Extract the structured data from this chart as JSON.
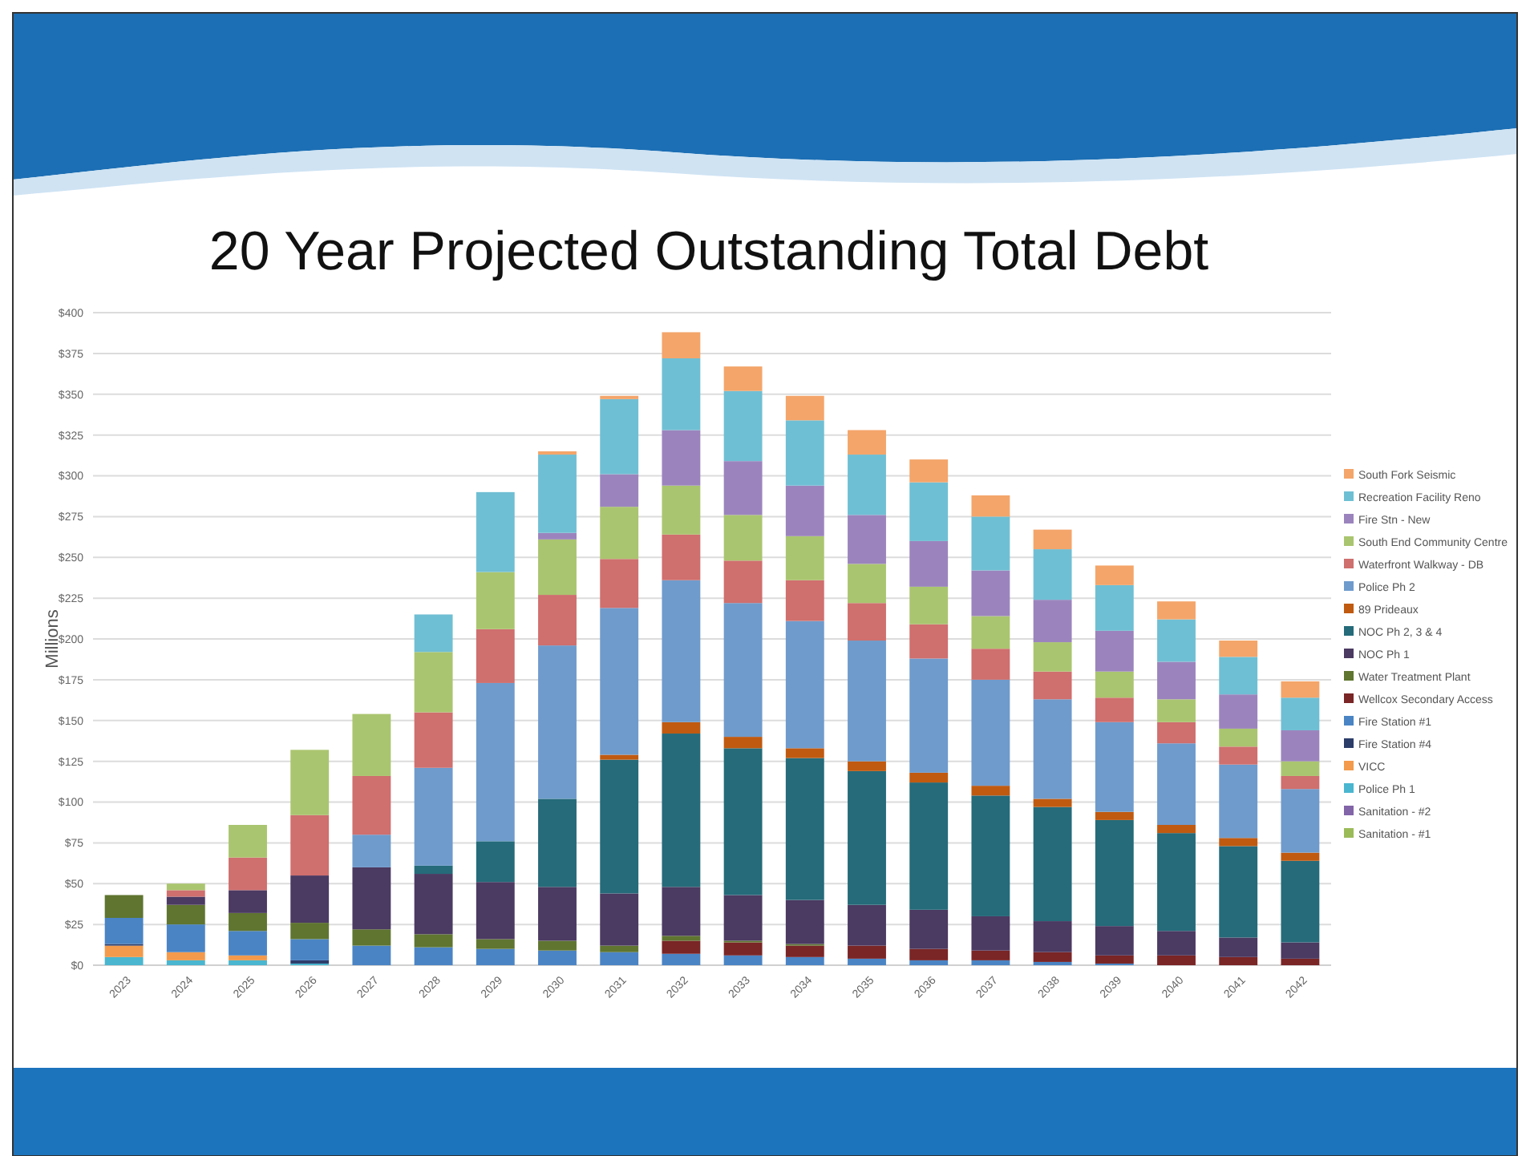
{
  "chart_data": {
    "type": "bar",
    "title": "20 Year Projected Outstanding Total Debt",
    "ylabel": "Millions",
    "stacked": true,
    "legend": "right",
    "grid": "y",
    "categories": [
      "2023",
      "2024",
      "2025",
      "2026",
      "2027",
      "2028",
      "2029",
      "2030",
      "2031",
      "2032",
      "2033",
      "2034",
      "2035",
      "2036",
      "2037",
      "2038",
      "2039",
      "2040",
      "2041",
      "2042"
    ],
    "ylim": [
      0,
      400
    ],
    "yticks": [
      {
        "value": 0,
        "label": "$0"
      },
      {
        "value": 25,
        "label": "$25"
      },
      {
        "value": 50,
        "label": "$50"
      },
      {
        "value": 75,
        "label": "$75"
      },
      {
        "value": 100,
        "label": "$100"
      },
      {
        "value": 125,
        "label": "$125"
      },
      {
        "value": 150,
        "label": "$150"
      },
      {
        "value": 175,
        "label": "$175"
      },
      {
        "value": 200,
        "label": "$200"
      },
      {
        "value": 225,
        "label": "$225"
      },
      {
        "value": 250,
        "label": "$250"
      },
      {
        "value": 275,
        "label": "$275"
      },
      {
        "value": 300,
        "label": "$300"
      },
      {
        "value": 325,
        "label": "$325"
      },
      {
        "value": 350,
        "label": "$350"
      },
      {
        "value": 375,
        "label": "$375"
      },
      {
        "value": 400,
        "label": "$400"
      }
    ],
    "series": [
      {
        "name": "Sanitation - #1",
        "color": "#9bbb59",
        "values": [
          0,
          0,
          0,
          0,
          0,
          0,
          0,
          0,
          0,
          0,
          0,
          0,
          0,
          0,
          0,
          0,
          0,
          0,
          0,
          0
        ]
      },
      {
        "name": "Sanitation - #2",
        "color": "#8264a8",
        "values": [
          0,
          0,
          0,
          0,
          0,
          0,
          0,
          0,
          0,
          0,
          0,
          0,
          0,
          0,
          0,
          0,
          0,
          0,
          0,
          0
        ]
      },
      {
        "name": "Police Ph 1",
        "color": "#4ab6cf",
        "values": [
          5,
          3,
          3,
          1,
          0,
          0,
          0,
          0,
          0,
          0,
          0,
          0,
          0,
          0,
          0,
          0,
          0,
          0,
          0,
          0
        ]
      },
      {
        "name": "VICC",
        "color": "#f39a4c",
        "values": [
          7,
          5,
          3,
          0,
          0,
          0,
          0,
          0,
          0,
          0,
          0,
          0,
          0,
          0,
          0,
          0,
          0,
          0,
          0,
          0
        ]
      },
      {
        "name": "Fire Station #4",
        "color": "#2c3d6a",
        "values": [
          1,
          0,
          0,
          2,
          0,
          0,
          0,
          0,
          0,
          0,
          0,
          0,
          0,
          0,
          0,
          0,
          0,
          0,
          0,
          0
        ]
      },
      {
        "name": "Fire Station #1",
        "color": "#4a84c4",
        "values": [
          16,
          17,
          15,
          13,
          12,
          11,
          10,
          9,
          8,
          7,
          6,
          5,
          4,
          3,
          3,
          2,
          1,
          0,
          0,
          0
        ]
      },
      {
        "name": "Wellcox Secondary Access",
        "color": "#7a2526",
        "values": [
          0,
          0,
          0,
          0,
          0,
          0,
          0,
          0,
          0,
          8,
          8,
          7,
          8,
          7,
          6,
          6,
          5,
          6,
          5,
          4
        ]
      },
      {
        "name": "Water Treatment Plant",
        "color": "#5f7530",
        "values": [
          14,
          12,
          11,
          10,
          10,
          8,
          6,
          6,
          4,
          3,
          1,
          1,
          0,
          0,
          0,
          0,
          0,
          0,
          0,
          0
        ]
      },
      {
        "name": "NOC Ph 1",
        "color": "#4b3a62",
        "values": [
          0,
          5,
          14,
          29,
          38,
          37,
          35,
          33,
          32,
          30,
          28,
          27,
          25,
          24,
          21,
          19,
          18,
          15,
          12,
          10
        ]
      },
      {
        "name": "NOC Ph 2, 3 & 4",
        "color": "#256b7a",
        "values": [
          0,
          0,
          0,
          0,
          0,
          5,
          25,
          54,
          82,
          94,
          90,
          87,
          82,
          78,
          74,
          70,
          65,
          60,
          56,
          50
        ]
      },
      {
        "name": "89 Prideaux",
        "color": "#c05a10",
        "values": [
          0,
          0,
          0,
          0,
          0,
          0,
          0,
          0,
          3,
          7,
          7,
          6,
          6,
          6,
          6,
          5,
          5,
          5,
          5,
          5
        ]
      },
      {
        "name": "Police Ph 2",
        "color": "#6f9bcc",
        "values": [
          0,
          0,
          0,
          0,
          20,
          60,
          97,
          94,
          90,
          87,
          82,
          78,
          74,
          70,
          65,
          61,
          55,
          50,
          45,
          39
        ]
      },
      {
        "name": "Waterfront Walkway - DB",
        "color": "#cf6f6e",
        "values": [
          0,
          4,
          20,
          37,
          36,
          34,
          33,
          31,
          30,
          28,
          26,
          25,
          23,
          21,
          19,
          17,
          15,
          13,
          11,
          8
        ]
      },
      {
        "name": "South End Community Centre",
        "color": "#aac56f",
        "values": [
          0,
          4,
          20,
          40,
          38,
          37,
          35,
          34,
          32,
          30,
          28,
          27,
          24,
          23,
          20,
          18,
          16,
          14,
          11,
          9
        ]
      },
      {
        "name": "Fire Stn - New",
        "color": "#9b84bd",
        "values": [
          0,
          0,
          0,
          0,
          0,
          0,
          0,
          4,
          20,
          34,
          33,
          31,
          30,
          28,
          28,
          26,
          25,
          23,
          21,
          19
        ]
      },
      {
        "name": "Recreation Facility Reno",
        "color": "#6fbfd4",
        "values": [
          0,
          0,
          0,
          0,
          0,
          23,
          49,
          48,
          46,
          44,
          43,
          40,
          37,
          36,
          33,
          31,
          28,
          26,
          23,
          20
        ]
      },
      {
        "name": "South Fork Seismic",
        "color": "#f4a56a",
        "values": [
          0,
          0,
          0,
          0,
          0,
          0,
          0,
          2,
          2,
          16,
          15,
          15,
          15,
          14,
          13,
          12,
          12,
          11,
          10,
          10
        ]
      }
    ]
  }
}
